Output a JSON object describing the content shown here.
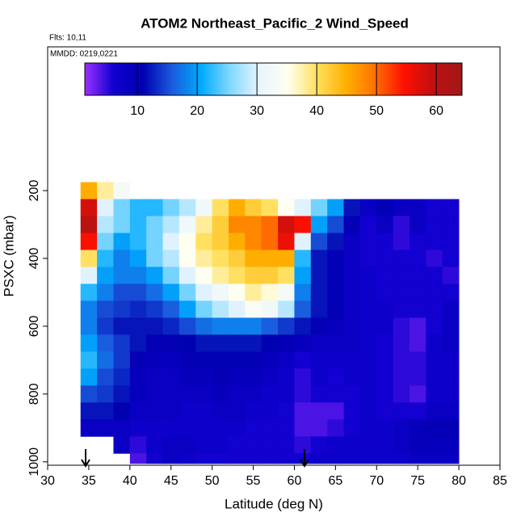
{
  "chart_data": {
    "type": "heatmap",
    "title": "ATOM2 Northeast_Pacific_2 Wind_Speed",
    "annotations": [
      "Flts: 10,11",
      "MMDD: 0219,0221"
    ],
    "x_label": "Latitude (deg N)",
    "y_label": "PSXC (mbar)",
    "xlim": [
      30,
      85
    ],
    "xticks": [
      30,
      35,
      40,
      45,
      50,
      55,
      60,
      65,
      70,
      75,
      80,
      85
    ],
    "ylim": [
      1010,
      -224
    ],
    "yticks": [
      200,
      400,
      600,
      800,
      1000
    ],
    "x_edges": [
      34,
      36,
      38,
      40,
      42,
      44,
      46,
      48,
      50,
      52,
      54,
      56,
      58,
      60,
      62,
      64,
      66,
      68,
      70,
      72,
      74,
      76,
      78,
      80
    ],
    "y_edges": [
      175,
      225,
      275,
      325,
      375,
      425,
      475,
      525,
      575,
      625,
      675,
      725,
      775,
      825,
      875,
      925,
      975,
      1005
    ],
    "z": [
      [
        45,
        38,
        33,
        null,
        null,
        null,
        null,
        null,
        null,
        null,
        null,
        null,
        null,
        null,
        null,
        null,
        null,
        null,
        null,
        null,
        null,
        null,
        null
      ],
      [
        58,
        30,
        25,
        22,
        22,
        25,
        28,
        32,
        40,
        45,
        42,
        40,
        35,
        30,
        25,
        20,
        12,
        8,
        10,
        8,
        8,
        6,
        6
      ],
      [
        60,
        28,
        25,
        22,
        25,
        28,
        32,
        38,
        42,
        48,
        48,
        50,
        58,
        55,
        20,
        15,
        10,
        6,
        8,
        5,
        8,
        6,
        6
      ],
      [
        55,
        25,
        20,
        22,
        25,
        30,
        35,
        40,
        42,
        45,
        48,
        50,
        56,
        30,
        15,
        12,
        8,
        6,
        6,
        5,
        6,
        6,
        6
      ],
      [
        40,
        22,
        18,
        20,
        25,
        28,
        35,
        38,
        40,
        42,
        45,
        45,
        45,
        22,
        12,
        10,
        8,
        6,
        6,
        6,
        6,
        5,
        6
      ],
      [
        30,
        20,
        18,
        18,
        20,
        25,
        30,
        35,
        38,
        40,
        42,
        42,
        40,
        20,
        12,
        10,
        8,
        7,
        6,
        6,
        6,
        6,
        5
      ],
      [
        22,
        18,
        15,
        15,
        17,
        20,
        25,
        30,
        32,
        35,
        38,
        36,
        33,
        18,
        12,
        10,
        8,
        7,
        6,
        6,
        6,
        6,
        6
      ],
      [
        18,
        15,
        14,
        13,
        14,
        16,
        20,
        25,
        28,
        30,
        34,
        32,
        28,
        16,
        12,
        10,
        8,
        7,
        7,
        6,
        6,
        6,
        8
      ],
      [
        18,
        14,
        12,
        12,
        12,
        13,
        15,
        17,
        18,
        18,
        18,
        16,
        14,
        12,
        10,
        9,
        8,
        7,
        7,
        5,
        4,
        6,
        8
      ],
      [
        20,
        16,
        14,
        12,
        10,
        10,
        11,
        12,
        12,
        12,
        12,
        11,
        10,
        9,
        8,
        8,
        8,
        7,
        6,
        5,
        4,
        7,
        8
      ],
      [
        22,
        17,
        14,
        10,
        9,
        9,
        10,
        10,
        10,
        10,
        10,
        9,
        8,
        6,
        7,
        7,
        7,
        7,
        6,
        5,
        5,
        7,
        7
      ],
      [
        20,
        15,
        13,
        9,
        8,
        8,
        9,
        9,
        10,
        9,
        9,
        8,
        7,
        5,
        7,
        6,
        7,
        7,
        6,
        5,
        5,
        7,
        7
      ],
      [
        15,
        14,
        12,
        9,
        8,
        8,
        8,
        8,
        9,
        8,
        8,
        7,
        7,
        5,
        6,
        6,
        6,
        7,
        6,
        5,
        4,
        7,
        7
      ],
      [
        12,
        12,
        11,
        8,
        8,
        8,
        7,
        7,
        8,
        8,
        7,
        7,
        6,
        4,
        4,
        4,
        6,
        7,
        6,
        6,
        6,
        8,
        8
      ],
      [
        8,
        8,
        8,
        7,
        7,
        7,
        7,
        7,
        7,
        7,
        6,
        6,
        6,
        4,
        4,
        5,
        6,
        7,
        7,
        8,
        9,
        10,
        10
      ],
      [
        null,
        null,
        8,
        5,
        7,
        8,
        8,
        7,
        7,
        6,
        6,
        6,
        6,
        5,
        6,
        7,
        7,
        7,
        7,
        8,
        9,
        9,
        9
      ],
      [
        null,
        null,
        null,
        4,
        6,
        8,
        7,
        6,
        6,
        6,
        6,
        6,
        6,
        6,
        7,
        7,
        7,
        7,
        7,
        7,
        8,
        8,
        8
      ]
    ],
    "colorbar_lim": [
      1.2,
      64.3
    ],
    "colorbar_ticks": [
      10,
      20,
      30,
      40,
      50,
      60
    ],
    "colormap": [
      "#9b30ff",
      "#1000d0",
      "#0000b0",
      "#1a5adc",
      "#00aaff",
      "#80d8ff",
      "#e8f4ff",
      "#fffff0",
      "#ffe060",
      "#ffb000",
      "#ff7000",
      "#ff1000",
      "#c01010",
      "#a01818"
    ]
  }
}
